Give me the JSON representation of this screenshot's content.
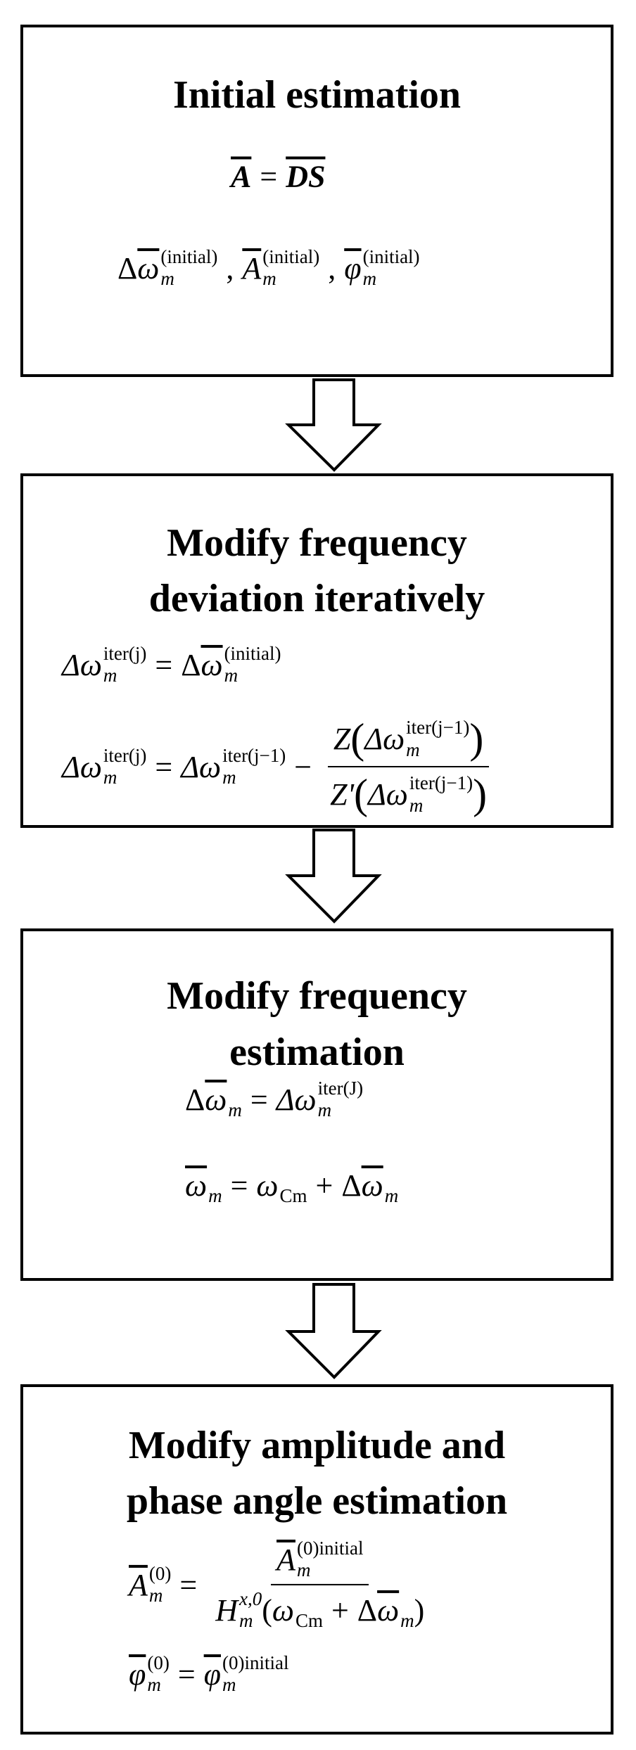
{
  "boxes": [
    {
      "title_lines": [
        "Initial estimation"
      ],
      "equations": [
        [
          "A",
          "=",
          "DS"
        ],
        [
          "Δ",
          "ω",
          "m",
          "(initial)",
          ",",
          "A",
          "m",
          "(initial)",
          ",",
          "φ",
          "m",
          "(initial)"
        ]
      ]
    },
    {
      "title_lines": [
        "Modify frequency",
        "deviation iteratively"
      ],
      "equations": [
        [
          "Δω",
          "m",
          "iter(j)",
          "=",
          "Δ",
          "ω",
          "m",
          "(initial)"
        ],
        [
          "Δω",
          "m",
          "iter(j)",
          "=",
          "Δω",
          "m",
          "iter(j−1)",
          "−",
          "Z",
          "(",
          "Δω",
          "m",
          "iter(j−1)",
          ")",
          "Z'",
          "(",
          "Δω",
          "m",
          "iter(j−1)",
          ")"
        ]
      ]
    },
    {
      "title_lines": [
        "Modify frequency",
        "estimation"
      ],
      "equations": [
        [
          "Δ",
          "ω",
          "m",
          "=",
          "Δω",
          "m",
          "iter(J)"
        ],
        [
          "ω",
          "m",
          "=",
          "ω",
          "Cm",
          "+",
          "Δ",
          "ω",
          "m"
        ]
      ]
    },
    {
      "title_lines": [
        "Modify amplitude and",
        "phase angle estimation"
      ],
      "equations": [
        [
          "A",
          "m",
          "(0)",
          "=",
          "A",
          "m",
          "(0)initial",
          "H",
          "m",
          "x,0",
          "(",
          "ω",
          "Cm",
          "+",
          "Δ",
          "ω",
          "m",
          ")"
        ],
        [
          "φ",
          "m",
          "(0)",
          "=",
          "φ",
          "m",
          "(0)initial"
        ]
      ]
    }
  ]
}
